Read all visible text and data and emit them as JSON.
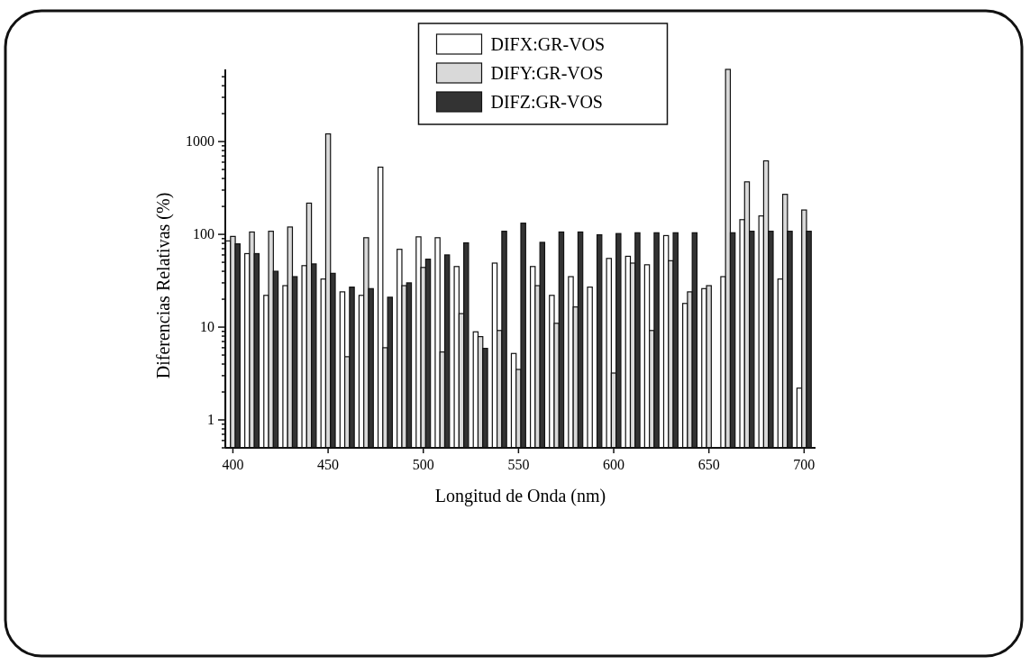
{
  "chart_data": {
    "type": "bar",
    "xlabel": "Longitud de Onda (nm)",
    "ylabel": "Diferencias Relativas (%)",
    "x": [
      400,
      410,
      420,
      430,
      440,
      450,
      460,
      470,
      480,
      490,
      500,
      510,
      520,
      530,
      540,
      550,
      560,
      570,
      580,
      590,
      600,
      610,
      620,
      630,
      640,
      650,
      660,
      670,
      680,
      690,
      700
    ],
    "series": [
      {
        "name": "DIFX:GR-VOS",
        "color": "#ffffff",
        "values": [
          85,
          62,
          22,
          28,
          46,
          33,
          24,
          22,
          530,
          69,
          94,
          92,
          45,
          8.9,
          49,
          5.2,
          45,
          22,
          35,
          27,
          55,
          58,
          47,
          97,
          18,
          26,
          35,
          144,
          158,
          33,
          2.2
        ]
      },
      {
        "name": "DIFY:GR-VOS",
        "color": "#d9d9d9",
        "values": [
          95,
          106,
          108,
          120,
          217,
          1210,
          4.8,
          92,
          6.0,
          28,
          44,
          5.4,
          14,
          7.9,
          9.2,
          3.5,
          28,
          11,
          16.5,
          null,
          3.2,
          49,
          9.2,
          52,
          24,
          28,
          6000,
          368,
          620,
          270,
          183
        ]
      },
      {
        "name": "DIFZ:GR-VOS",
        "color": "#333333",
        "values": [
          79,
          62,
          40,
          35,
          48,
          38,
          27,
          26,
          21,
          30,
          54,
          60,
          81,
          5.9,
          108,
          132,
          82,
          106,
          106,
          99,
          102,
          104,
          104,
          104,
          104,
          null,
          104,
          108,
          108,
          108,
          108
        ]
      }
    ],
    "log": true,
    "xlim": [
      396,
      706
    ],
    "xticks": [
      400,
      450,
      500,
      550,
      600,
      650,
      700
    ],
    "ylim": [
      0.5,
      6000
    ],
    "yticks": [
      {
        "value": 0.5,
        "label": null
      },
      {
        "value": 0.6,
        "label": null
      },
      {
        "value": 0.7,
        "label": null
      },
      {
        "value": 0.8,
        "label": null
      },
      {
        "value": 0.9,
        "label": null
      },
      1,
      {
        "value": 2,
        "label": null
      },
      {
        "value": 3,
        "label": null
      },
      {
        "value": 4,
        "label": null
      },
      {
        "value": 5,
        "label": null
      },
      {
        "value": 6,
        "label": null
      },
      {
        "value": 7,
        "label": null
      },
      {
        "value": 8,
        "label": null
      },
      {
        "value": 9,
        "label": null
      },
      10,
      {
        "value": 20,
        "label": null
      },
      {
        "value": 30,
        "label": null
      },
      {
        "value": 40,
        "label": null
      },
      {
        "value": 50,
        "label": null
      },
      {
        "value": 60,
        "label": null
      },
      {
        "value": 70,
        "label": null
      },
      {
        "value": 80,
        "label": null
      },
      {
        "value": 90,
        "label": null
      },
      100,
      {
        "value": 200,
        "label": null
      },
      {
        "value": 300,
        "label": null
      },
      {
        "value": 400,
        "label": null
      },
      {
        "value": 500,
        "label": null
      },
      {
        "value": 600,
        "label": null
      },
      {
        "value": 700,
        "label": null
      },
      {
        "value": 800,
        "label": null
      },
      {
        "value": 900,
        "label": null
      },
      1000,
      {
        "value": 2000,
        "label": null
      },
      {
        "value": 3000,
        "label": null
      },
      {
        "value": 4000,
        "label": null
      },
      {
        "value": 5000,
        "label": null
      }
    ],
    "legend": "top",
    "grid": false
  }
}
